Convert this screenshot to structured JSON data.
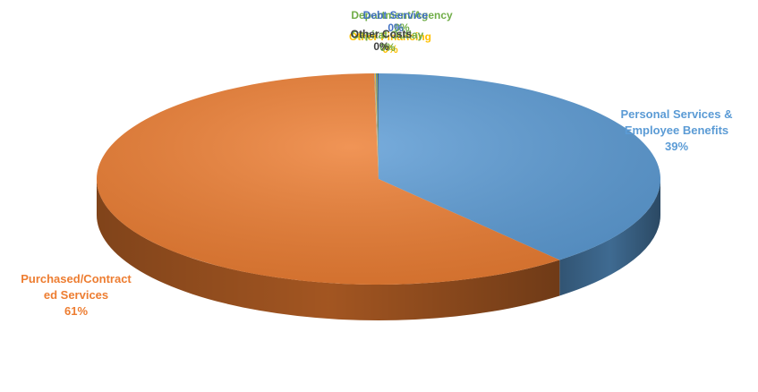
{
  "chart_data": {
    "type": "pie",
    "style": "3d",
    "slices": [
      {
        "name": "Personal Services & Employee Benefits",
        "name_lines": [
          "Personal Services &",
          "Employee Benefits"
        ],
        "percent_label": "39%",
        "value": 39,
        "color": "#5B9BD5",
        "label_color": "#5B9BD5"
      },
      {
        "name": "Purchased/Contracted Services",
        "name_lines": [
          "Purchased/Contract",
          "ed Services"
        ],
        "percent_label": "61%",
        "value": 61,
        "color": "#ED7D31",
        "label_color": "#ED7D31"
      },
      {
        "name": "Department/Agency",
        "name_lines": [
          "Department/Agency"
        ],
        "percent_label": "0%",
        "value": 0.05,
        "color": "#A5A5A5",
        "label_color": "#70AD47"
      },
      {
        "name": "Other Financing",
        "name_lines": [
          "Other Financing"
        ],
        "percent_label": "0%",
        "value": 0.05,
        "color": "#FFC000",
        "label_color": "#FFC000"
      },
      {
        "name": "Debt Service",
        "name_lines": [
          "Debt Service"
        ],
        "percent_label": "0%",
        "value": 0.05,
        "color": "#4472C4",
        "label_color": "#4472C4"
      },
      {
        "name": "Capital Outlay",
        "name_lines": [
          "Capital Outlay"
        ],
        "percent_label": "0%",
        "value": 0.05,
        "color": "#70AD47",
        "label_color": "#70AD47"
      },
      {
        "name": "Other Costs",
        "name_lines": [
          "Other Costs"
        ],
        "percent_label": "0%",
        "value": 0.05,
        "color": "#264478",
        "label_color": "#404040"
      }
    ],
    "legend": "none",
    "start_angle_deg": 0
  }
}
